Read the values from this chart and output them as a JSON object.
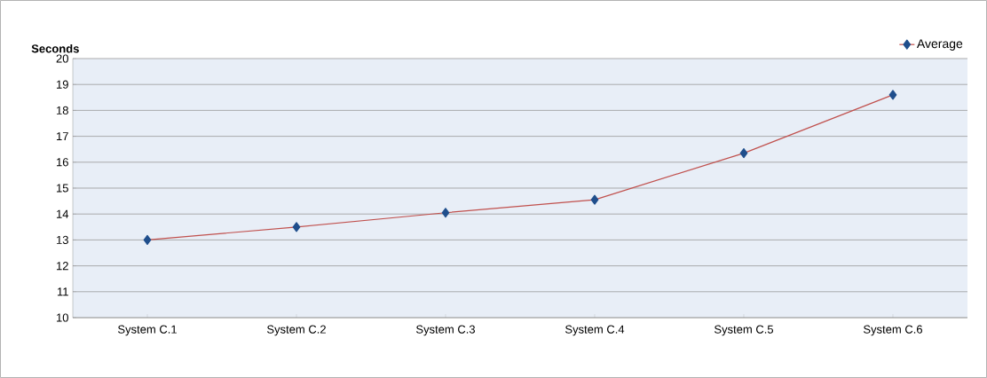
{
  "chart_data": {
    "type": "line",
    "ylabel": "Seconds",
    "categories": [
      "System C.1",
      "System C.2",
      "System C.3",
      "System C.4",
      "System C.5",
      "System C.6"
    ],
    "series": [
      {
        "name": "Average",
        "color": "#c0504d",
        "values": [
          13.0,
          13.5,
          14.05,
          14.55,
          16.35,
          18.6
        ]
      }
    ],
    "ylim": [
      10,
      20
    ],
    "yticks": [
      10,
      11,
      12,
      13,
      14,
      15,
      16,
      17,
      18,
      19,
      20
    ],
    "grid": "y",
    "legend": "top right",
    "marker": "diamond",
    "line_style": "solid"
  }
}
